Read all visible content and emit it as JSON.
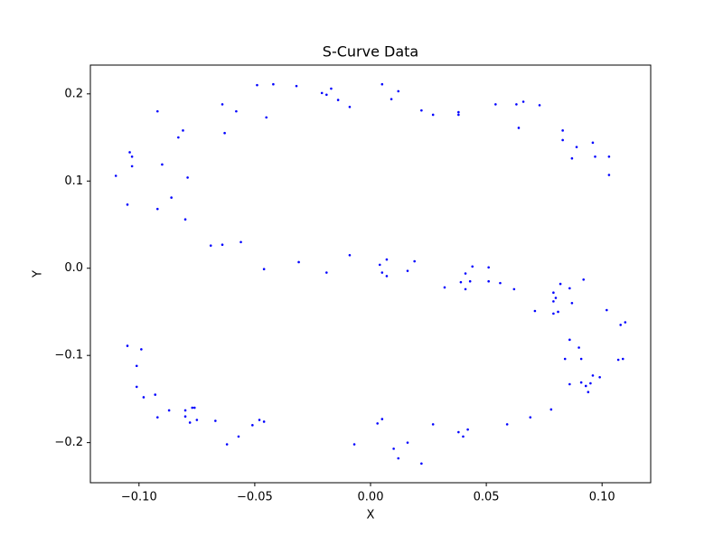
{
  "chart_data": {
    "type": "scatter",
    "title": "S-Curve Data",
    "x_label": "X",
    "y_label": "Y",
    "color": "#0000ff",
    "xlim": [
      -0.121,
      0.121
    ],
    "ylim": [
      -0.246,
      0.233
    ],
    "xticks": [
      {
        "value": -0.1,
        "label": "−0.10"
      },
      {
        "value": -0.05,
        "label": "−0.05"
      },
      {
        "value": 0,
        "label": "0.00"
      },
      {
        "value": 0.05,
        "label": "0.05"
      },
      {
        "value": 0.1,
        "label": "0.10"
      }
    ],
    "yticks": [
      {
        "value": -0.2,
        "label": "−0.2"
      },
      {
        "value": -0.1,
        "label": "−0.1"
      },
      {
        "value": 0,
        "label": "0.0"
      },
      {
        "value": 0.1,
        "label": "0.1"
      },
      {
        "value": 0.2,
        "label": "0.2"
      }
    ],
    "x": [
      -0.11,
      -0.105,
      -0.104,
      -0.103,
      -0.103,
      -0.092,
      -0.092,
      -0.09,
      -0.086,
      -0.083,
      -0.081,
      -0.079,
      -0.08,
      -0.069,
      -0.064,
      -0.063,
      -0.064,
      -0.058,
      -0.056,
      -0.049,
      -0.045,
      -0.046,
      -0.042,
      -0.032,
      -0.031,
      -0.021,
      -0.019,
      -0.017,
      -0.019,
      -0.014,
      -0.009,
      -0.009,
      0.005,
      0.009,
      0.012,
      0.004,
      0.005,
      0.007,
      0.007,
      0.016,
      0.019,
      0.022,
      0.027,
      0.032,
      0.038,
      0.038,
      0.039,
      0.041,
      0.041,
      0.043,
      0.044,
      0.051,
      0.051,
      0.054,
      0.056,
      0.062,
      0.063,
      0.064,
      0.066,
      0.071,
      0.073,
      0.079,
      0.079,
      0.079,
      0.08,
      0.081,
      0.082,
      0.083,
      0.083,
      0.084,
      0.086,
      0.086,
      0.086,
      0.087,
      0.087,
      0.089,
      0.09,
      0.091,
      0.091,
      0.092,
      0.093,
      0.094,
      0.095,
      0.096,
      0.096,
      0.097,
      0.099,
      0.102,
      0.103,
      0.103,
      0.107,
      0.108,
      0.109,
      0.11,
      -0.105,
      -0.099,
      -0.101,
      -0.101,
      -0.098,
      -0.093,
      -0.092,
      -0.087,
      -0.08,
      -0.08,
      -0.078,
      -0.077,
      -0.076,
      -0.075,
      -0.067,
      -0.062,
      -0.057,
      -0.051,
      -0.048,
      -0.046,
      -0.007,
      0.003,
      0.005,
      0.01,
      0.012,
      0.016,
      0.022,
      0.027,
      0.038,
      0.04,
      0.042,
      0.059,
      0.069,
      0.078
    ],
    "y": [
      0.106,
      0.073,
      0.133,
      0.117,
      0.128,
      0.18,
      0.068,
      0.119,
      0.081,
      0.15,
      0.158,
      0.104,
      0.056,
      0.026,
      0.188,
      0.155,
      0.027,
      0.18,
      0.03,
      0.21,
      0.173,
      -0.001,
      0.211,
      0.209,
      0.007,
      0.201,
      0.199,
      0.206,
      -0.005,
      0.193,
      0.185,
      0.015,
      0.211,
      0.194,
      0.203,
      0.004,
      -0.005,
      0.01,
      -0.009,
      -0.003,
      0.008,
      0.181,
      0.176,
      -0.022,
      0.179,
      0.176,
      -0.016,
      -0.006,
      -0.024,
      -0.015,
      0.002,
      0.001,
      -0.015,
      0.188,
      -0.017,
      -0.024,
      0.188,
      0.161,
      0.191,
      -0.049,
      0.187,
      -0.038,
      -0.028,
      -0.052,
      -0.034,
      -0.05,
      -0.018,
      0.158,
      0.147,
      -0.104,
      -0.023,
      -0.082,
      -0.133,
      -0.04,
      0.126,
      0.139,
      -0.091,
      -0.104,
      -0.131,
      -0.013,
      -0.135,
      -0.142,
      -0.132,
      0.144,
      -0.123,
      0.128,
      -0.125,
      -0.048,
      0.107,
      0.128,
      -0.105,
      -0.065,
      -0.104,
      -0.062,
      -0.089,
      -0.093,
      -0.112,
      -0.136,
      -0.148,
      -0.145,
      -0.171,
      -0.163,
      -0.163,
      -0.17,
      -0.177,
      -0.16,
      -0.16,
      -0.174,
      -0.175,
      -0.202,
      -0.193,
      -0.18,
      -0.174,
      -0.176,
      -0.202,
      -0.178,
      -0.173,
      -0.207,
      -0.218,
      -0.2,
      -0.224,
      -0.179,
      -0.188,
      -0.193,
      -0.185,
      -0.179,
      -0.171,
      -0.162
    ]
  }
}
